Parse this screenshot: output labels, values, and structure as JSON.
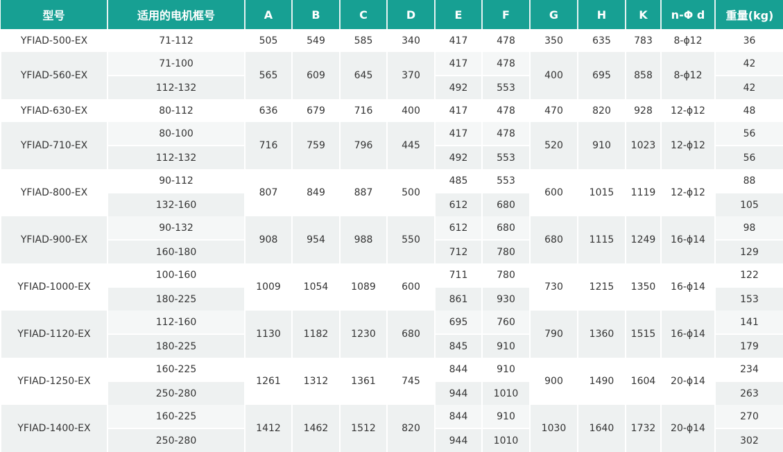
{
  "header": [
    "型号",
    "适用的电机框号",
    "A",
    "B",
    "C",
    "D",
    "E",
    "F",
    "G",
    "H",
    "K",
    "n-Φ d",
    "重量(kg)"
  ],
  "colors": {
    "header_bg": "#17a093",
    "header_text": "#ffffff",
    "row_alt": "#eef1f1"
  },
  "groups": [
    {
      "model": "YFIAD-500-EX",
      "A": "505",
      "B": "549",
      "C": "585",
      "D": "340",
      "G": "350",
      "H": "635",
      "K": "783",
      "nd": "8-ϕ12",
      "sub": [
        {
          "frame": "71-112",
          "E": "417",
          "F": "478",
          "weight": "36"
        }
      ]
    },
    {
      "model": "YFIAD-560-EX",
      "A": "565",
      "B": "609",
      "C": "645",
      "D": "370",
      "G": "400",
      "H": "695",
      "K": "858",
      "nd": "8-ϕ12",
      "sub": [
        {
          "frame": "71-100",
          "E": "417",
          "F": "478",
          "weight": "42"
        },
        {
          "frame": "112-132",
          "E": "492",
          "F": "553",
          "weight": "42"
        }
      ]
    },
    {
      "model": "YFIAD-630-EX",
      "A": "636",
      "B": "679",
      "C": "716",
      "D": "400",
      "G": "470",
      "H": "820",
      "K": "928",
      "nd": "12-ϕ12",
      "sub": [
        {
          "frame": "80-112",
          "E": "417",
          "F": "478",
          "weight": "48"
        }
      ]
    },
    {
      "model": "YFIAD-710-EX",
      "A": "716",
      "B": "759",
      "C": "796",
      "D": "445",
      "G": "520",
      "H": "910",
      "K": "1023",
      "nd": "12-ϕ12",
      "sub": [
        {
          "frame": "80-100",
          "E": "417",
          "F": "478",
          "weight": "56"
        },
        {
          "frame": "112-132",
          "E": "492",
          "F": "553",
          "weight": "56"
        }
      ]
    },
    {
      "model": "YFIAD-800-EX",
      "A": "807",
      "B": "849",
      "C": "887",
      "D": "500",
      "G": "600",
      "H": "1015",
      "K": "1119",
      "nd": "12-ϕ12",
      "sub": [
        {
          "frame": "90-112",
          "E": "485",
          "F": "553",
          "weight": "88"
        },
        {
          "frame": "132-160",
          "E": "612",
          "F": "680",
          "weight": "105"
        }
      ]
    },
    {
      "model": "YFIAD-900-EX",
      "A": "908",
      "B": "954",
      "C": "988",
      "D": "550",
      "G": "680",
      "H": "1115",
      "K": "1249",
      "nd": "16-ϕ14",
      "sub": [
        {
          "frame": "90-132",
          "E": "612",
          "F": "680",
          "weight": "98"
        },
        {
          "frame": "160-180",
          "E": "712",
          "F": "780",
          "weight": "129"
        }
      ]
    },
    {
      "model": "YFIAD-1000-EX",
      "A": "1009",
      "B": "1054",
      "C": "1089",
      "D": "600",
      "G": "730",
      "H": "1215",
      "K": "1350",
      "nd": "16-ϕ14",
      "sub": [
        {
          "frame": "100-160",
          "E": "711",
          "F": "780",
          "weight": "122"
        },
        {
          "frame": "180-225",
          "E": "861",
          "F": "930",
          "weight": "153"
        }
      ]
    },
    {
      "model": "YFIAD-1120-EX",
      "A": "1130",
      "B": "1182",
      "C": "1230",
      "D": "680",
      "G": "790",
      "H": "1360",
      "K": "1515",
      "nd": "16-ϕ14",
      "sub": [
        {
          "frame": "112-160",
          "E": "695",
          "F": "760",
          "weight": "141"
        },
        {
          "frame": "180-225",
          "E": "845",
          "F": "910",
          "weight": "179"
        }
      ]
    },
    {
      "model": "YFIAD-1250-EX",
      "A": "1261",
      "B": "1312",
      "C": "1361",
      "D": "745",
      "G": "900",
      "H": "1490",
      "K": "1604",
      "nd": "20-ϕ14",
      "sub": [
        {
          "frame": "160-225",
          "E": "844",
          "F": "910",
          "weight": "234"
        },
        {
          "frame": "250-280",
          "E": "944",
          "F": "1010",
          "weight": "263"
        }
      ]
    },
    {
      "model": "YFIAD-1400-EX",
      "A": "1412",
      "B": "1462",
      "C": "1512",
      "D": "820",
      "G": "1030",
      "H": "1640",
      "K": "1732",
      "nd": "20-ϕ14",
      "sub": [
        {
          "frame": "160-225",
          "E": "844",
          "F": "910",
          "weight": "270"
        },
        {
          "frame": "250-280",
          "E": "944",
          "F": "1010",
          "weight": "302"
        }
      ]
    }
  ]
}
